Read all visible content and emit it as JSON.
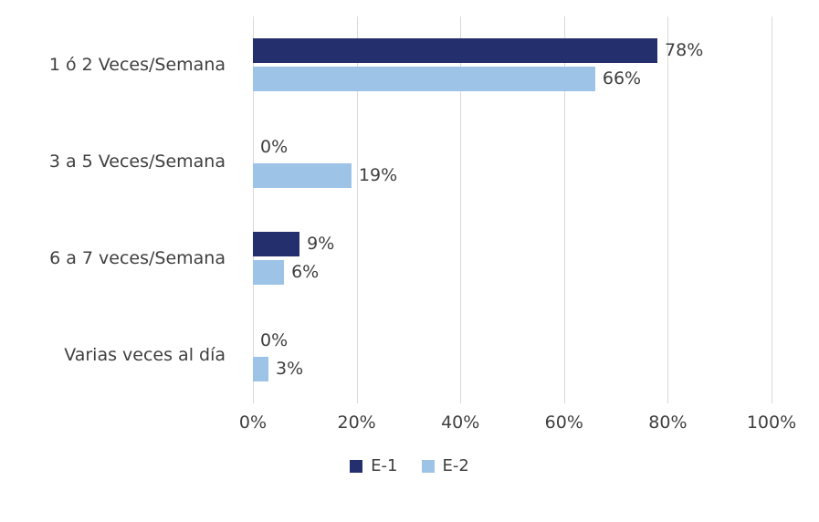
{
  "chart_data": {
    "type": "bar",
    "orientation": "horizontal",
    "title": "",
    "xlabel": "",
    "ylabel": "",
    "xlim": [
      0,
      100
    ],
    "grid": "vertical",
    "legend_position": "bottom",
    "categories": [
      "1 ó 2 Veces/Semana",
      "3 a 5 Veces/Semana",
      "6 a 7 veces/Semana",
      "Varias veces al día"
    ],
    "series": [
      {
        "name": "E-1",
        "color": "#242f6e",
        "values": [
          78,
          0,
          9,
          0
        ],
        "labels": [
          "78%",
          "0%",
          "9%",
          "0%"
        ]
      },
      {
        "name": "E-2",
        "color": "#9dc3e6",
        "values": [
          66,
          19,
          6,
          3
        ],
        "labels": [
          "66%",
          "19%",
          "6%",
          "3%"
        ]
      }
    ],
    "x_tick_values": [
      0,
      20,
      40,
      60,
      80,
      100
    ],
    "x_tick_labels": [
      "0%",
      "20%",
      "40%",
      "60%",
      "80%",
      "100%"
    ]
  },
  "colors": {
    "gridline": "#d9d9d9",
    "text": "#3f3f3f",
    "background": "#ffffff"
  }
}
